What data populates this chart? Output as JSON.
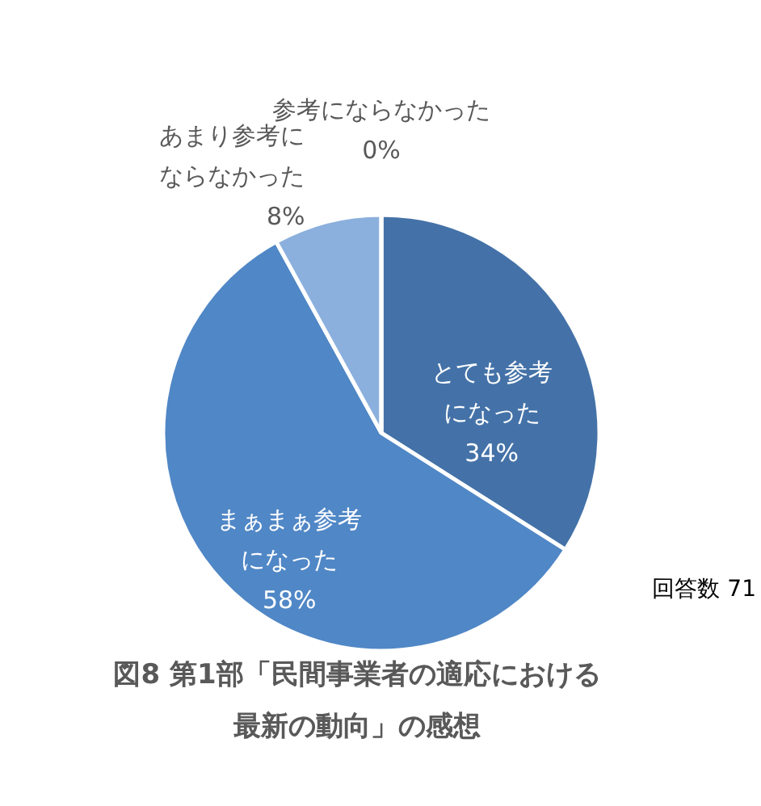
{
  "chart_data": {
    "type": "pie",
    "title": "図8 第1部「民間事業者の適応における最新の動向」の感想",
    "categories": [
      "とても参考になった",
      "まぁまぁ参考になった",
      "あまり参考にならなかった",
      "参考にならなかった"
    ],
    "values": [
      34,
      58,
      8,
      0
    ],
    "value_labels": [
      "34%",
      "58%",
      "8%",
      "0%"
    ],
    "colors": [
      "#4472a8",
      "#5087c6",
      "#8cb0dd",
      "#2f5597"
    ],
    "annotations": [
      "回答数 71"
    ]
  }
}
